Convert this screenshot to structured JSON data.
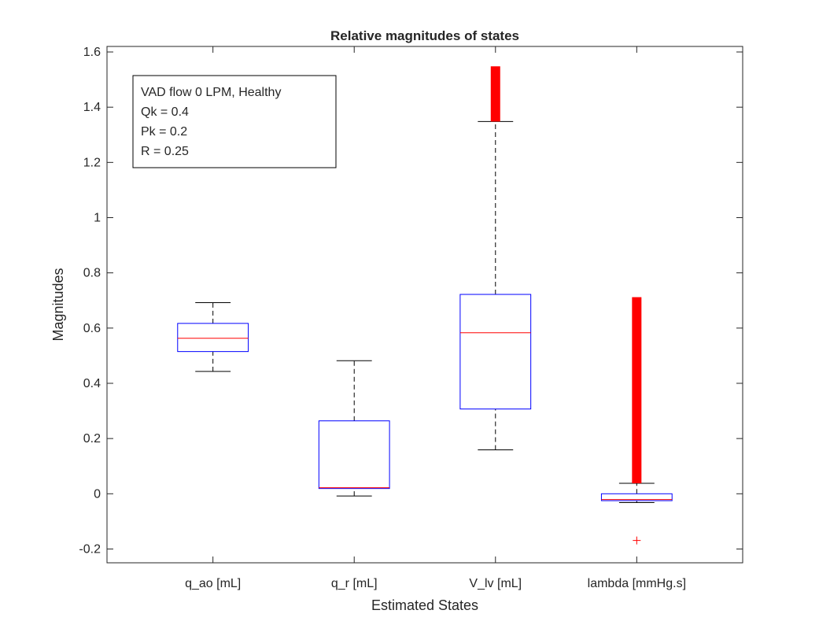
{
  "chart_data": {
    "type": "box",
    "title": "Relative magnitudes of states",
    "xlabel": "Estimated States",
    "ylabel": "Magnitudes",
    "ylim": [
      -0.25,
      1.62
    ],
    "yticks": [
      -0.2,
      0,
      0.2,
      0.4,
      0.6,
      0.8,
      1,
      1.2,
      1.4,
      1.6
    ],
    "ytick_labels": [
      "-0.2",
      "0",
      "0.2",
      "0.4",
      "0.6",
      "0.8",
      "1",
      "1.2",
      "1.4",
      "1.6"
    ],
    "categories": [
      "q_ao [mL]",
      "q_r [mL]",
      "V_lv [mL]",
      "lambda [mmHg.s]"
    ],
    "boxes": [
      {
        "whisker_low": 0.443,
        "q1": 0.515,
        "median": 0.563,
        "q3": 0.617,
        "whisker_high": 0.692,
        "outliers": []
      },
      {
        "whisker_low": -0.008,
        "q1": 0.019,
        "median": 0.022,
        "q3": 0.264,
        "whisker_high": 0.482,
        "outliers": []
      },
      {
        "whisker_low": 0.159,
        "q1": 0.307,
        "median": 0.583,
        "q3": 0.722,
        "whisker_high": 1.348,
        "outlier_range": [
          1.348,
          1.548
        ],
        "outliers": []
      },
      {
        "whisker_low": -0.032,
        "q1": -0.025,
        "median": -0.021,
        "q3": 0.0,
        "whisker_high": 0.038,
        "outlier_range": [
          0.038,
          0.712
        ],
        "outliers": [
          -0.169
        ]
      }
    ],
    "legend_text": [
      "VAD flow 0 LPM, Healthy",
      "Qk = 0.4",
      "Pk = 0.2",
      "R = 0.25"
    ],
    "legend_position": "top-left",
    "colors": {
      "box": "#0000ff",
      "median": "#ff0000",
      "whisker": "#000000",
      "outlier": "#ff0000",
      "axes": "#262626"
    }
  }
}
